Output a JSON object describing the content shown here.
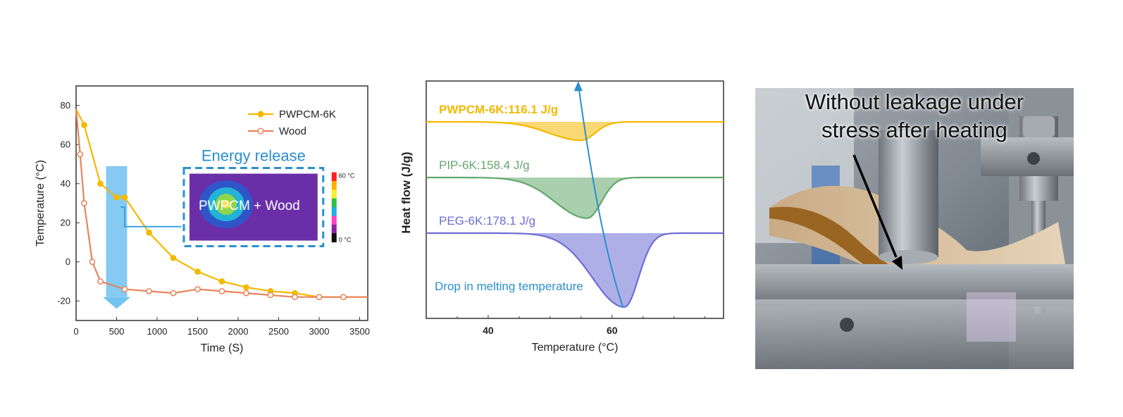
{
  "chart_data": [
    {
      "type": "line",
      "xlabel": "Time (S)",
      "ylabel": "Temperature (°C)",
      "xlim": [
        0,
        3600
      ],
      "ylim": [
        -30,
        90
      ],
      "xticks": [
        0,
        500,
        1000,
        1500,
        2000,
        2500,
        3000,
        3500
      ],
      "yticks": [
        -20,
        0,
        20,
        40,
        60,
        80
      ],
      "legend_position": "top-right",
      "series": [
        {
          "name": "PWPCM-6K",
          "color": "#f5b800",
          "marker": "filled-circle",
          "x": [
            0,
            100,
            300,
            500,
            600,
            900,
            1200,
            1500,
            1800,
            2100,
            2400,
            2700,
            3000,
            3300,
            3600
          ],
          "values": [
            78,
            70,
            40,
            33,
            33,
            15,
            2,
            -5,
            -10,
            -13,
            -15,
            -16,
            -18,
            -18,
            -18
          ]
        },
        {
          "name": "Wood",
          "color": "#e8845a",
          "marker": "open-circle",
          "x": [
            0,
            50,
            100,
            200,
            300,
            600,
            900,
            1200,
            1500,
            1800,
            2100,
            2400,
            2700,
            3000,
            3300,
            3600
          ],
          "values": [
            78,
            55,
            30,
            0,
            -10,
            -14,
            -15,
            -16,
            -14,
            -15,
            -16,
            -17,
            -18,
            -18,
            -18,
            -18
          ]
        }
      ],
      "inset": {
        "title": "Energy release",
        "label": "PWPCM + Wood",
        "scale_max": "60 °C",
        "scale_min": "0 °C"
      }
    },
    {
      "type": "area",
      "xlabel": "Temperature (°C)",
      "ylabel": "Heat flow (J/g)",
      "xlim": [
        30,
        78
      ],
      "xticks": [
        40,
        60
      ],
      "series": [
        {
          "name": "PWPCM-6K",
          "label": "PWPCM-6K:116.1 J/g",
          "color": "#f5b800",
          "peak_x": 55,
          "depth": 0.25
        },
        {
          "name": "PIP-6K",
          "label": "PIP-6K:158.4 J/g",
          "color": "#63a86b",
          "peak_x": 56,
          "depth": 0.55
        },
        {
          "name": "PEG-6K",
          "label": "PEG-6K:178.1 J/g",
          "color": "#6d6dd6",
          "peak_x": 62,
          "depth": 1.0
        }
      ],
      "annotation": "Drop in melting temperature"
    }
  ],
  "photo": {
    "caption_line1": "Without leakage under",
    "caption_line2": "stress after heating"
  }
}
